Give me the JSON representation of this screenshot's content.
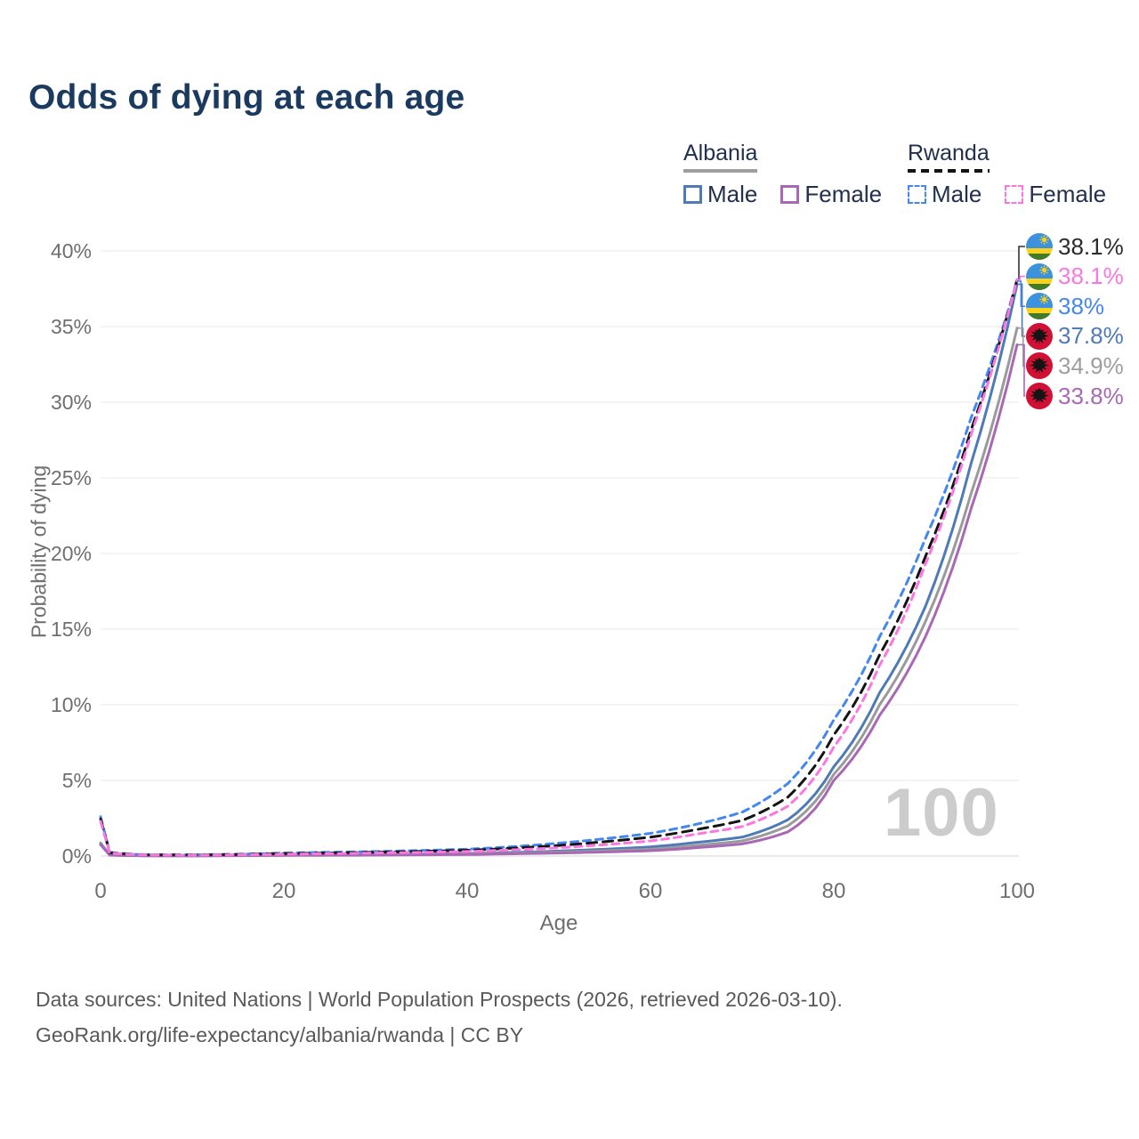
{
  "title": "Odds of dying at each age",
  "watermark": "100",
  "footer": {
    "line1": "Data sources: United Nations | World Population Prospects (2026, retrieved 2026-03-10).",
    "line2": "GeoRank.org/life-expectancy/albania/rwanda | CC BY"
  },
  "legend": {
    "groups": [
      {
        "label": "Albania",
        "underline_color": "#9e9e9e",
        "underline_dashed": false,
        "items": [
          {
            "label": "Male",
            "color": "#4e7ab5",
            "dashed": false
          },
          {
            "label": "Female",
            "color": "#a968b4",
            "dashed": false
          }
        ]
      },
      {
        "label": "Rwanda",
        "underline_color": "#141414",
        "underline_dashed": true,
        "items": [
          {
            "label": "Male",
            "color": "#4487f1",
            "dashed": true
          },
          {
            "label": "Female",
            "color": "#fb77e0",
            "dashed": true
          }
        ]
      }
    ]
  },
  "chart_data": {
    "type": "line",
    "title": "Odds of dying at each age",
    "xlabel": "Age",
    "ylabel": "Probability of dying",
    "xlim": [
      0,
      100
    ],
    "ylim": [
      0,
      40
    ],
    "x_ticks": [
      0,
      20,
      40,
      60,
      80,
      100
    ],
    "y_ticks": [
      0,
      5,
      10,
      15,
      20,
      25,
      30,
      35,
      40
    ],
    "y_tick_suffix": "%",
    "grid": true,
    "legend_position": "top-right",
    "ages": [
      0,
      1,
      5,
      10,
      15,
      20,
      25,
      30,
      35,
      40,
      45,
      50,
      55,
      60,
      65,
      70,
      75,
      80,
      85,
      90,
      95,
      100
    ],
    "series": [
      {
        "name": "Rwanda (both sexes)",
        "country": "rwanda",
        "flag": "rwanda-flag-icon",
        "color": "#141414",
        "label_color": "#2b2b2b",
        "dashed": true,
        "end_label": "38.1%",
        "values": [
          2.45,
          0.22,
          0.07,
          0.07,
          0.1,
          0.16,
          0.2,
          0.25,
          0.31,
          0.38,
          0.52,
          0.7,
          0.95,
          1.25,
          1.75,
          2.35,
          3.9,
          8.0,
          13.3,
          19.8,
          28.2,
          38.1
        ]
      },
      {
        "name": "Rwanda Female",
        "country": "rwanda",
        "flag": "rwanda-flag-icon",
        "color": "#fb77e0",
        "label_color": "#fb77e0",
        "dashed": true,
        "end_label": "38.1%",
        "values": [
          2.3,
          0.2,
          0.065,
          0.06,
          0.08,
          0.12,
          0.16,
          0.2,
          0.24,
          0.3,
          0.41,
          0.55,
          0.75,
          1.0,
          1.45,
          1.95,
          3.3,
          7.2,
          12.6,
          19.3,
          27.9,
          38.1
        ]
      },
      {
        "name": "Rwanda Male",
        "country": "rwanda",
        "flag": "rwanda-flag-icon",
        "color": "#4487f1",
        "label_color": "#4487f1",
        "dashed": true,
        "end_label": "38%",
        "values": [
          2.6,
          0.25,
          0.08,
          0.08,
          0.12,
          0.2,
          0.25,
          0.3,
          0.37,
          0.45,
          0.62,
          0.85,
          1.15,
          1.5,
          2.1,
          2.9,
          4.8,
          9.0,
          14.5,
          21.0,
          29.0,
          38.0
        ]
      },
      {
        "name": "Albania Male",
        "country": "albania",
        "flag": "albania-flag-icon",
        "color": "#4e7ab5",
        "label_color": "#4e7ab5",
        "dashed": false,
        "end_label": "37.8%",
        "values": [
          0.85,
          0.07,
          0.025,
          0.02,
          0.04,
          0.07,
          0.08,
          0.1,
          0.13,
          0.17,
          0.24,
          0.33,
          0.45,
          0.6,
          0.9,
          1.25,
          2.4,
          5.9,
          10.8,
          16.5,
          26.0,
          37.8
        ]
      },
      {
        "name": "Albania (both sexes)",
        "country": "albania",
        "flag": "albania-flag-icon",
        "color": "#9a9a9a",
        "label_color": "#9e9e9e",
        "dashed": false,
        "end_label": "34.9%",
        "values": [
          0.8,
          0.065,
          0.022,
          0.018,
          0.03,
          0.055,
          0.065,
          0.08,
          0.1,
          0.14,
          0.19,
          0.26,
          0.35,
          0.45,
          0.7,
          1.0,
          2.0,
          5.4,
          10.0,
          15.5,
          24.0,
          34.9
        ]
      },
      {
        "name": "Albania Female",
        "country": "albania",
        "flag": "albania-flag-icon",
        "color": "#a968b4",
        "label_color": "#a968b4",
        "dashed": false,
        "end_label": "33.8%",
        "values": [
          0.75,
          0.06,
          0.02,
          0.016,
          0.025,
          0.04,
          0.05,
          0.06,
          0.08,
          0.1,
          0.15,
          0.2,
          0.27,
          0.35,
          0.55,
          0.8,
          1.6,
          5.0,
          9.3,
          14.5,
          23.0,
          33.8
        ]
      }
    ]
  }
}
